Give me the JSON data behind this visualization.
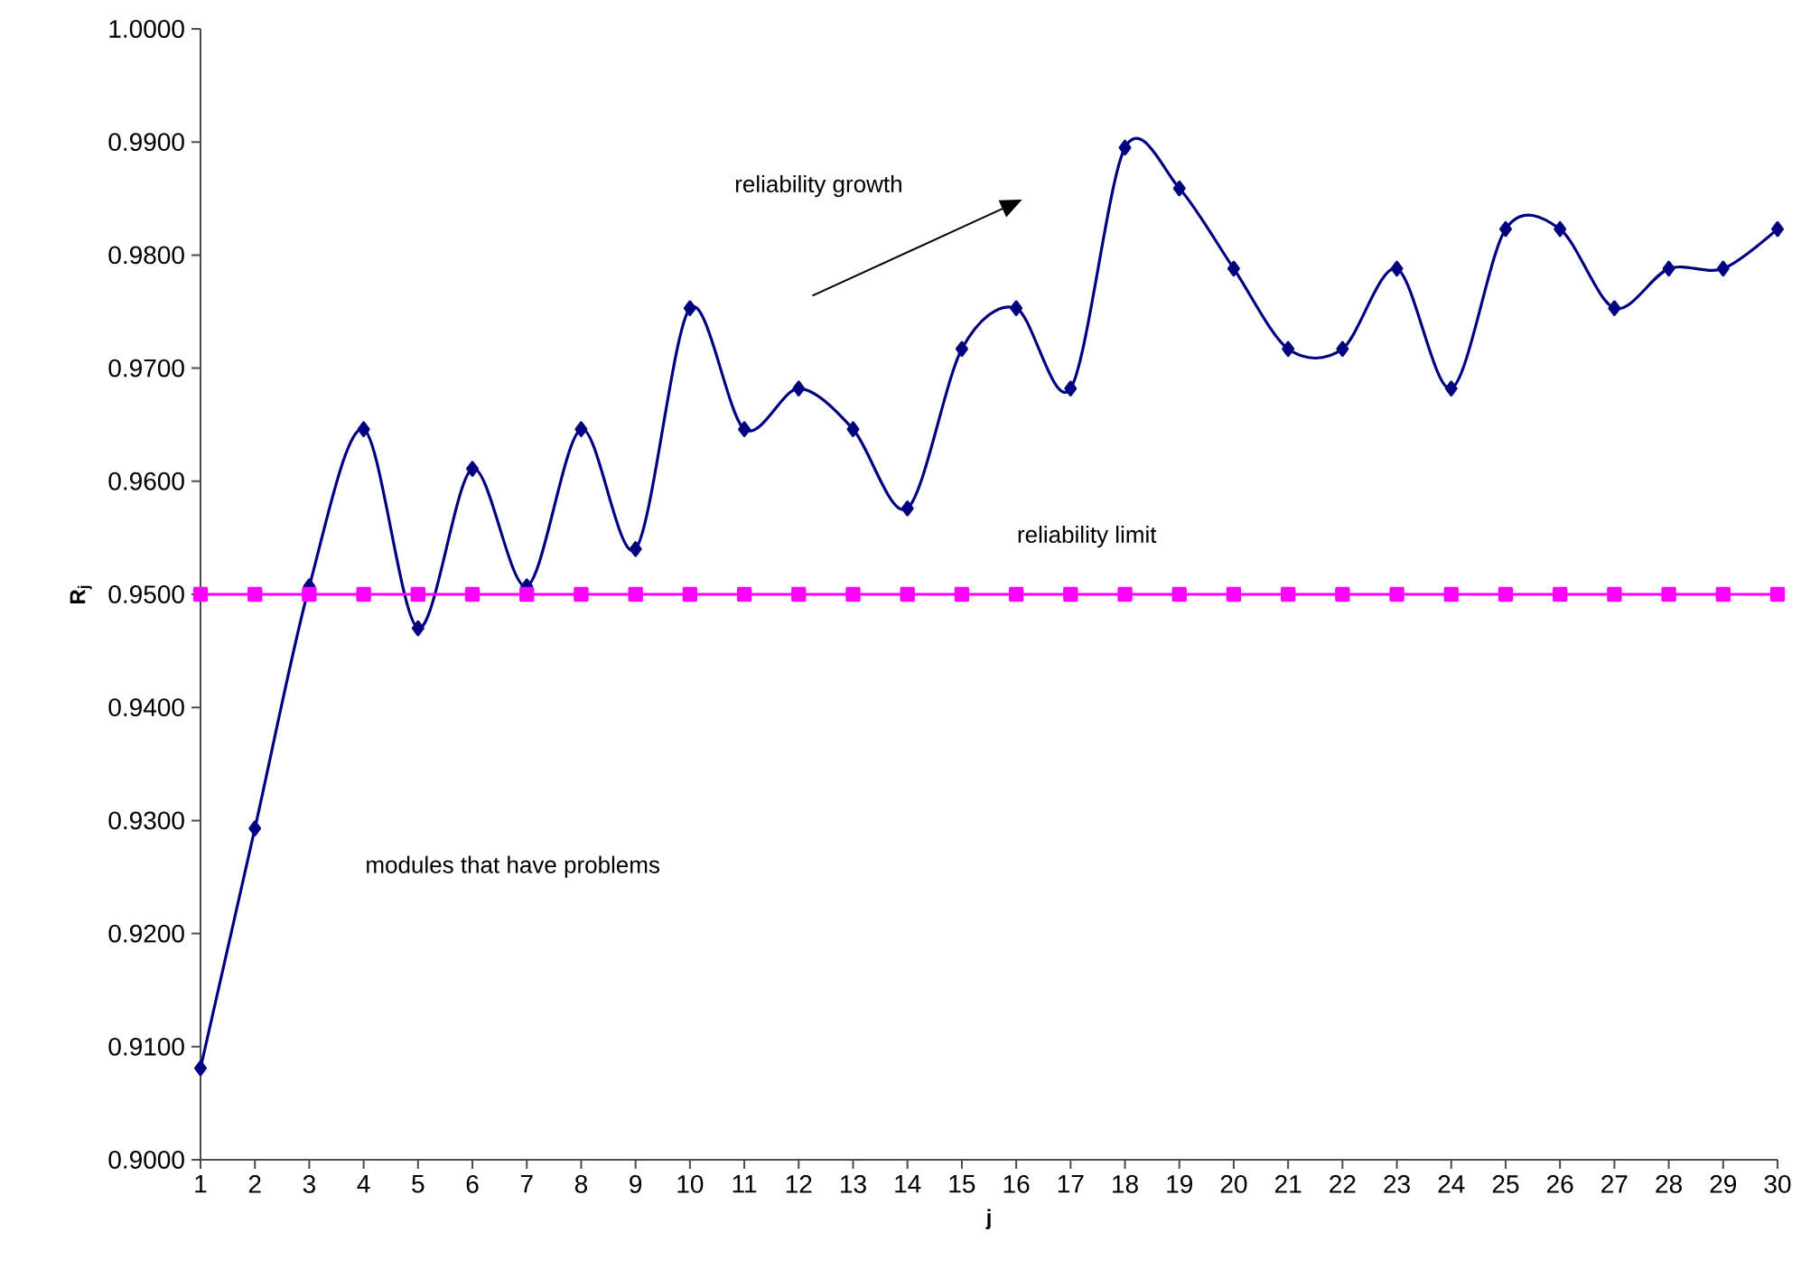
{
  "chart_data": {
    "type": "line",
    "xlabel": "j",
    "ylabel": "**R$_{j}$**",
    "x": [
      1,
      2,
      3,
      4,
      5,
      6,
      7,
      8,
      9,
      10,
      11,
      12,
      13,
      14,
      15,
      16,
      17,
      18,
      19,
      20,
      21,
      22,
      23,
      24,
      25,
      26,
      27,
      28,
      29,
      30
    ],
    "series": [
      {
        "color": "#000080",
        "marker": "diamond",
        "values": [
          0.9081,
          0.9293,
          0.9507,
          0.9646,
          0.947,
          0.9611,
          0.9507,
          0.9646,
          0.954,
          0.9753,
          0.9646,
          0.9682,
          0.9646,
          0.9576,
          0.9717,
          0.9753,
          0.9682,
          0.9895,
          0.9859,
          0.9788,
          0.9717,
          0.9717,
          0.9788,
          0.9682,
          0.9823,
          0.9823,
          0.9753,
          0.9788,
          0.9788,
          0.9823
        ]
      },
      {
        "color": "#ff00ff",
        "marker": "square",
        "values": [
          0.95,
          0.95,
          0.95,
          0.95,
          0.95,
          0.95,
          0.95,
          0.95,
          0.95,
          0.95,
          0.95,
          0.95,
          0.95,
          0.95,
          0.95,
          0.95,
          0.95,
          0.95,
          0.95,
          0.95,
          0.95,
          0.95,
          0.95,
          0.95,
          0.95,
          0.95,
          0.95,
          0.95,
          0.95,
          0.95
        ]
      }
    ],
    "xlim": [
      1,
      30
    ],
    "xticks": [
      1,
      2,
      3,
      4,
      5,
      6,
      7,
      8,
      9,
      10,
      11,
      12,
      13,
      14,
      15,
      16,
      17,
      18,
      19,
      20,
      21,
      22,
      23,
      24,
      25,
      26,
      27,
      28,
      29,
      30
    ],
    "ylim": [
      0.9,
      1.0
    ],
    "yticks": [
      {
        "value": 0.9,
        "label": "0.9000"
      },
      {
        "value": 0.91,
        "label": "0.9100"
      },
      {
        "value": 0.92,
        "label": "0.9200"
      },
      {
        "value": 0.93,
        "label": "0.9300"
      },
      {
        "value": 0.94,
        "label": "0.9400"
      },
      {
        "value": 0.95,
        "label": "0.9500"
      },
      {
        "value": 0.96,
        "label": "0.9600"
      },
      {
        "value": 0.97,
        "label": "0.9700"
      },
      {
        "value": 0.98,
        "label": "0.9800"
      },
      {
        "value": 0.99,
        "label": "0.9900"
      },
      {
        "value": 1.0,
        "label": "1.0000"
      }
    ],
    "annotations": [
      "reliability growth",
      "reliability limit",
      "modules that have problems"
    ]
  }
}
